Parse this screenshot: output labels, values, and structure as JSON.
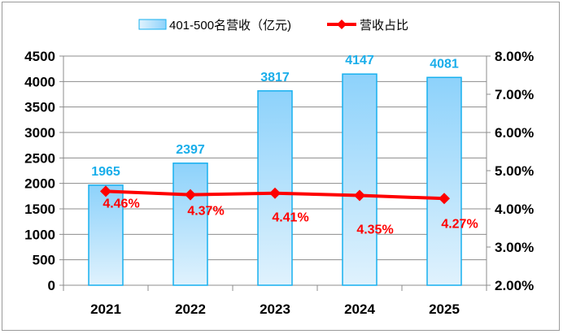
{
  "chart_data": {
    "type": "bar+line",
    "categories": [
      "2021",
      "2022",
      "2023",
      "2024",
      "2025"
    ],
    "series": [
      {
        "name": "401-500名营收（亿元)",
        "type": "bar",
        "axis": "left",
        "values": [
          1965,
          2397,
          3817,
          4147,
          4081
        ],
        "labels": [
          "1965",
          "2397",
          "3817",
          "4147",
          "4081"
        ],
        "color": "#8fd3fb"
      },
      {
        "name": "营收占比",
        "type": "line",
        "axis": "right",
        "values": [
          4.46,
          4.37,
          4.41,
          4.35,
          4.27
        ],
        "labels": [
          "4.46%",
          "4.37%",
          "4.41%",
          "4.35%",
          "4.27%"
        ],
        "color": "#ff0000"
      }
    ],
    "left_axis": {
      "range": [
        0,
        4500
      ],
      "ticks": [
        "0",
        "500",
        "1000",
        "1500",
        "2000",
        "2500",
        "3000",
        "3500",
        "4000",
        "4500"
      ]
    },
    "right_axis": {
      "range": [
        2,
        8
      ],
      "ticks": [
        "2.00%",
        "3.00%",
        "4.00%",
        "5.00%",
        "6.00%",
        "7.00%",
        "8.00%"
      ]
    },
    "grid": true,
    "legend": "top-center"
  }
}
